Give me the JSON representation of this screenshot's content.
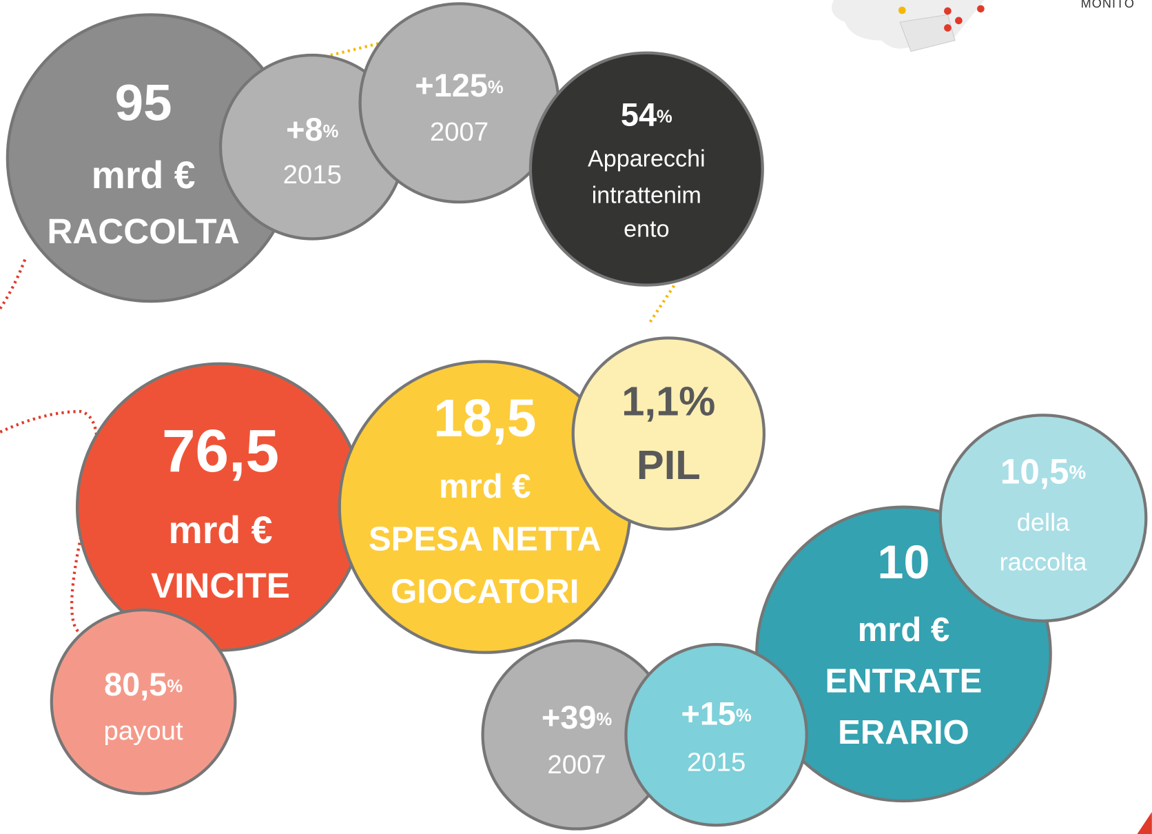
{
  "logo_text": "MONITO",
  "bubbles": [
    {
      "fill": "#8c8c8c",
      "text_color": "#ffffff",
      "lines": [
        {
          "text": "95"
        },
        {
          "text": "mrd €"
        },
        {
          "text": "RACCOLTA"
        }
      ]
    },
    {
      "fill": "#b2b2b2",
      "text_color": "#ffffff",
      "lines": [
        {
          "text": "+8",
          "suffix": "%"
        },
        {
          "text": "2015"
        }
      ]
    },
    {
      "fill": "#b2b2b2",
      "text_color": "#ffffff",
      "lines": [
        {
          "text": "+125",
          "suffix": "%"
        },
        {
          "text": "2007"
        }
      ]
    },
    {
      "fill": "#343432",
      "text_color": "#ffffff",
      "lines": [
        {
          "text": "54",
          "suffix": "%"
        },
        {
          "text": "Apparecchi"
        },
        {
          "text": "intrattenim"
        },
        {
          "text": "ento"
        }
      ]
    },
    {
      "fill": "#ef5337",
      "text_color": "#ffffff",
      "lines": [
        {
          "text": "76,5"
        },
        {
          "text": "mrd €"
        },
        {
          "text": "VINCITE"
        }
      ]
    },
    {
      "fill": "#fccc3a",
      "text_color": "#ffffff",
      "lines": [
        {
          "text": "18,5"
        },
        {
          "text": "mrd €"
        },
        {
          "text": "SPESA NETTA"
        },
        {
          "text": "GIOCATORI"
        }
      ]
    },
    {
      "fill": "#fdeeb2",
      "text_color": "#595959",
      "lines": [
        {
          "text": "1,1%"
        },
        {
          "text": "PIL"
        }
      ]
    },
    {
      "fill": "#f4998a",
      "text_color": "#ffffff",
      "lines": [
        {
          "text": "80,5",
          "suffix": "%"
        },
        {
          "text": "payout"
        }
      ]
    },
    {
      "fill": "#34a2b1",
      "text_color": "#ffffff",
      "lines": [
        {
          "text": "10"
        },
        {
          "text": "mrd €"
        },
        {
          "text": "ENTRATE"
        },
        {
          "text": "ERARIO"
        }
      ]
    },
    {
      "fill": "#a9dee5",
      "text_color": "#ffffff",
      "lines": [
        {
          "text": "10,5",
          "suffix": "%"
        },
        {
          "text": "della"
        },
        {
          "text": "raccolta"
        }
      ]
    },
    {
      "fill": "#b2b2b2",
      "text_color": "#ffffff",
      "lines": [
        {
          "text": "+39",
          "suffix": "%"
        },
        {
          "text": "2007"
        }
      ]
    },
    {
      "fill": "#7ed0da",
      "text_color": "#ffffff",
      "lines": [
        {
          "text": "+15",
          "suffix": "%"
        },
        {
          "text": "2015"
        }
      ]
    }
  ]
}
